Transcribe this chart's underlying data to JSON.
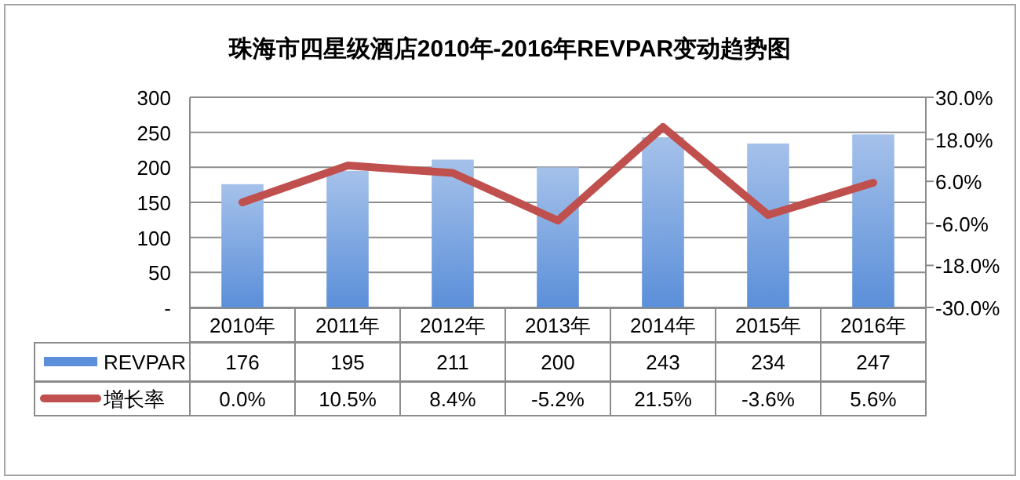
{
  "chart_data": {
    "type": "bar",
    "title": "珠海市四星级酒店2010年-2016年REVPAR变动趋势图",
    "categories": [
      "2010年",
      "2011年",
      "2012年",
      "2013年",
      "2014年",
      "2015年",
      "2016年"
    ],
    "series": [
      {
        "name": "REVPAR",
        "color": "#5b8fd9",
        "values": [
          176,
          195,
          211,
          200,
          243,
          234,
          247
        ],
        "value_labels": [
          "176",
          "195",
          "211",
          "200",
          "243",
          "234",
          "247"
        ]
      },
      {
        "name": "增长率",
        "type": "line",
        "axis": "y2",
        "color": "#c0504d",
        "values": [
          0.0,
          10.5,
          8.4,
          -5.2,
          21.5,
          -3.6,
          5.6
        ],
        "value_labels": [
          "0.0%",
          "10.5%",
          "8.4%",
          "-5.2%",
          "21.5%",
          "-3.6%",
          "5.6%"
        ]
      }
    ],
    "ylim": [
      0,
      300
    ],
    "yticks": [
      {
        "value": 0,
        "label": "-"
      },
      50,
      100,
      150,
      200,
      250,
      300
    ],
    "y2lim": [
      -30,
      30
    ],
    "y2ticks": [
      {
        "value": -30,
        "label": "-30.0%"
      },
      {
        "value": -18,
        "label": "-18.0%"
      },
      {
        "value": -6,
        "label": "-6.0%"
      },
      {
        "value": 6,
        "label": "6.0%"
      },
      {
        "value": 18,
        "label": "18.0%"
      },
      {
        "value": 30,
        "label": "30.0%"
      }
    ],
    "grid": "y",
    "legend": "bottom"
  }
}
